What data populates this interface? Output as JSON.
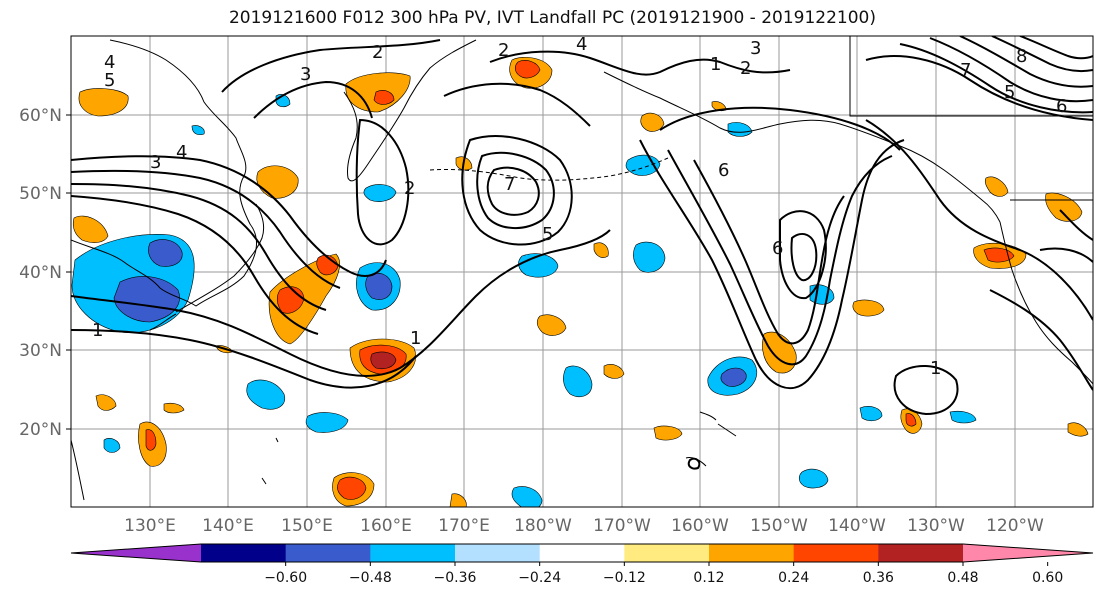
{
  "title": "2019121600 F012 300 hPa PV, IVT Landfall PC (2019121900 - 2019122100)",
  "lat_labels": [
    "60°N",
    "50°N",
    "40°N",
    "30°N",
    "20°N"
  ],
  "lon_labels": [
    "130°E",
    "140°E",
    "150°E",
    "160°E",
    "170°E",
    "180°W",
    "170°W",
    "160°W",
    "150°W",
    "140°W",
    "130°W",
    "120°W"
  ],
  "colorbar": {
    "colors": [
      "#9932CC",
      "#00008B",
      "#3A5BCC",
      "#00BFFF",
      "#B3E0FF",
      "#FFFFFF",
      "#FFEB80",
      "#FFA500",
      "#FF4500",
      "#B22222",
      "#FF88AA"
    ],
    "labels": [
      "−0.60",
      "−0.48",
      "−0.36",
      "−0.24",
      "−0.12",
      "0.12",
      "0.24",
      "0.36",
      "0.48",
      "0.60"
    ]
  },
  "contour_labels": [
    "4",
    "5",
    "3",
    "2",
    "4",
    "3",
    "2",
    "8",
    "7",
    "5",
    "6",
    "3",
    "4",
    "2",
    "7",
    "2",
    "5",
    "6",
    "6",
    "1",
    "1",
    "1",
    "1"
  ]
}
